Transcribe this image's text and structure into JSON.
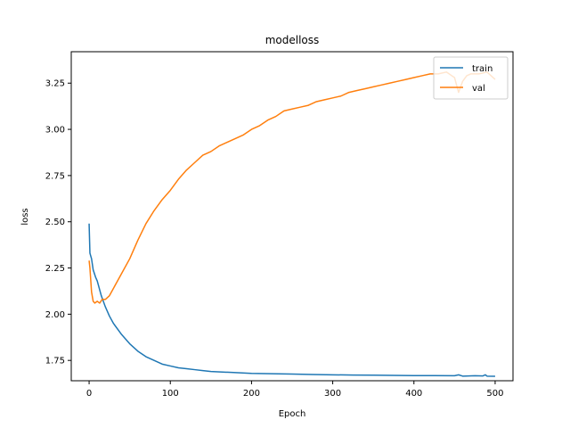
{
  "chart_data": {
    "type": "line",
    "title": "modelloss",
    "xlabel": "Epoch",
    "ylabel": "loss",
    "xlim": [
      -22,
      522
    ],
    "ylim": [
      1.64,
      3.42
    ],
    "xticks": [
      0,
      100,
      200,
      300,
      400,
      500
    ],
    "yticks": [
      1.75,
      2.0,
      2.25,
      2.5,
      2.75,
      3.0,
      3.25
    ],
    "ytick_labels": [
      "1.75",
      "2.00",
      "2.25",
      "2.50",
      "2.75",
      "3.00",
      "3.25"
    ],
    "legend": {
      "location": "upper right",
      "entries": [
        "train",
        "val"
      ]
    },
    "grid": false,
    "series": [
      {
        "name": "train",
        "color": "#1f77b4",
        "x": [
          0,
          1,
          3,
          5,
          8,
          10,
          15,
          20,
          25,
          30,
          40,
          50,
          60,
          70,
          80,
          90,
          100,
          110,
          120,
          130,
          140,
          150,
          175,
          200,
          225,
          250,
          275,
          300,
          325,
          350,
          375,
          400,
          425,
          450,
          455,
          460,
          475,
          485,
          488,
          490,
          500
        ],
        "y": [
          2.49,
          2.33,
          2.3,
          2.24,
          2.2,
          2.18,
          2.1,
          2.04,
          1.99,
          1.95,
          1.89,
          1.84,
          1.8,
          1.77,
          1.75,
          1.73,
          1.72,
          1.71,
          1.705,
          1.7,
          1.695,
          1.69,
          1.685,
          1.68,
          1.678,
          1.676,
          1.674,
          1.672,
          1.671,
          1.67,
          1.669,
          1.668,
          1.668,
          1.667,
          1.672,
          1.665,
          1.667,
          1.666,
          1.672,
          1.665,
          1.664
        ]
      },
      {
        "name": "val",
        "color": "#ff7f0e",
        "x": [
          0,
          1,
          3,
          5,
          7,
          10,
          13,
          16,
          20,
          25,
          30,
          40,
          50,
          60,
          70,
          80,
          90,
          100,
          110,
          120,
          130,
          140,
          150,
          160,
          170,
          180,
          190,
          200,
          210,
          220,
          230,
          240,
          250,
          260,
          270,
          280,
          290,
          300,
          310,
          320,
          330,
          340,
          350,
          360,
          370,
          380,
          390,
          400,
          410,
          420,
          430,
          440,
          450,
          455,
          460,
          465,
          470,
          480,
          490,
          500
        ],
        "y": [
          2.29,
          2.25,
          2.12,
          2.07,
          2.06,
          2.07,
          2.06,
          2.08,
          2.08,
          2.1,
          2.14,
          2.22,
          2.3,
          2.4,
          2.49,
          2.56,
          2.62,
          2.67,
          2.73,
          2.78,
          2.82,
          2.86,
          2.88,
          2.91,
          2.93,
          2.95,
          2.97,
          3.0,
          3.02,
          3.05,
          3.07,
          3.1,
          3.11,
          3.12,
          3.13,
          3.15,
          3.16,
          3.17,
          3.18,
          3.2,
          3.21,
          3.22,
          3.23,
          3.24,
          3.25,
          3.26,
          3.27,
          3.28,
          3.29,
          3.3,
          3.3,
          3.31,
          3.28,
          3.2,
          3.26,
          3.29,
          3.3,
          3.3,
          3.31,
          3.27
        ]
      }
    ]
  }
}
